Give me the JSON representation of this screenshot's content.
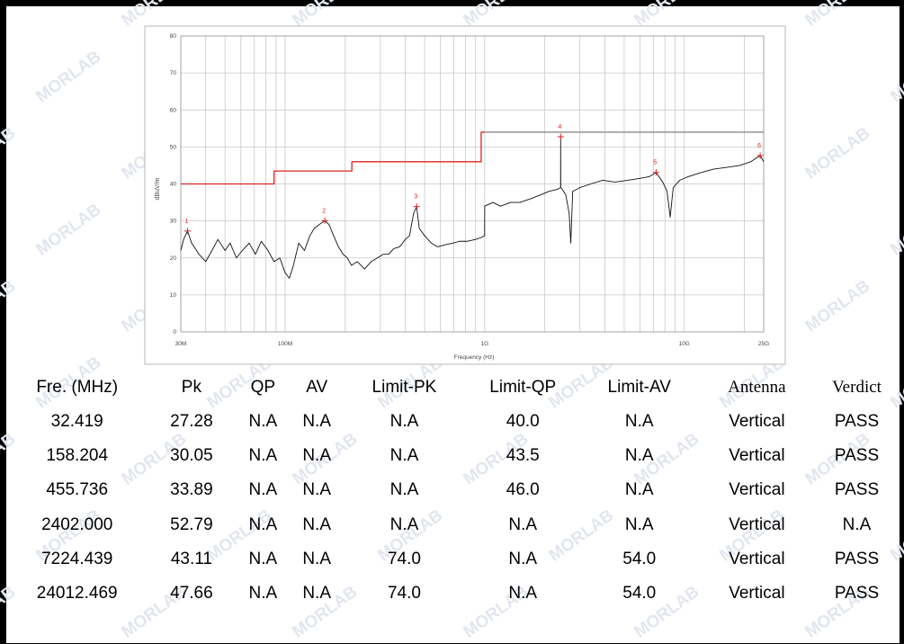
{
  "watermark_text": "MORLAB",
  "chart_data": {
    "type": "line",
    "xlabel": "Frequency (Hz)",
    "ylabel": "dBuV/m",
    "x_scale": "log",
    "xlim_mhz": [
      30,
      25000
    ],
    "ylim": [
      0,
      80
    ],
    "y_ticks": [
      "0",
      "10",
      "20",
      "30",
      "40",
      "50",
      "60",
      "70",
      "80"
    ],
    "x_ticks": [
      {
        "mhz": 30,
        "label": "30M"
      },
      {
        "mhz": 100,
        "label": "100M"
      },
      {
        "mhz": 1000,
        "label": "1G"
      },
      {
        "mhz": 10000,
        "label": "10G"
      },
      {
        "mhz": 25000,
        "label": "25G"
      }
    ],
    "grid": true,
    "colors": {
      "limit_qp": "#dd2222",
      "limit_pk": "#8a8a8a",
      "trace": "#111111",
      "marker": "#dd2222",
      "grid": "#c8c8c8"
    },
    "series": [
      {
        "kind": "trace",
        "points": [
          [
            30,
            22
          ],
          [
            31,
            25
          ],
          [
            32.4,
            27.3
          ],
          [
            34,
            24
          ],
          [
            37,
            21
          ],
          [
            40,
            19
          ],
          [
            43,
            22
          ],
          [
            46,
            25
          ],
          [
            50,
            22
          ],
          [
            53,
            24
          ],
          [
            57,
            20
          ],
          [
            61,
            22
          ],
          [
            66,
            24
          ],
          [
            71,
            21
          ],
          [
            76,
            24.5
          ],
          [
            82,
            22
          ],
          [
            88,
            19
          ],
          [
            94,
            20
          ],
          [
            100,
            16
          ],
          [
            105,
            14.5
          ],
          [
            110,
            18
          ],
          [
            117,
            24
          ],
          [
            125,
            22
          ],
          [
            133,
            26
          ],
          [
            140,
            28
          ],
          [
            148,
            29
          ],
          [
            158.2,
            30.05
          ],
          [
            166,
            29
          ],
          [
            175,
            26
          ],
          [
            185,
            23
          ],
          [
            195,
            21
          ],
          [
            205,
            20
          ],
          [
            215,
            18
          ],
          [
            230,
            19
          ],
          [
            250,
            17
          ],
          [
            270,
            19
          ],
          [
            290,
            20
          ],
          [
            310,
            21
          ],
          [
            330,
            21
          ],
          [
            350,
            22.5
          ],
          [
            375,
            23
          ],
          [
            400,
            25
          ],
          [
            420,
            26
          ],
          [
            440,
            32
          ],
          [
            455.7,
            33.89
          ],
          [
            470,
            28
          ],
          [
            500,
            26
          ],
          [
            540,
            24
          ],
          [
            580,
            23
          ],
          [
            630,
            23.5
          ],
          [
            690,
            24
          ],
          [
            750,
            24.5
          ],
          [
            820,
            24.5
          ],
          [
            900,
            25
          ],
          [
            960,
            25.5
          ],
          [
            999,
            26
          ],
          [
            1000,
            34
          ],
          [
            1100,
            35
          ],
          [
            1200,
            34
          ],
          [
            1350,
            35
          ],
          [
            1500,
            35
          ],
          [
            1700,
            36
          ],
          [
            1900,
            37
          ],
          [
            2100,
            38
          ],
          [
            2300,
            38.5
          ],
          [
            2400,
            39
          ],
          [
            2402,
            52.79
          ],
          [
            2405,
            39
          ],
          [
            2450,
            38.5
          ],
          [
            2550,
            37
          ],
          [
            2650,
            32
          ],
          [
            2700,
            24
          ],
          [
            2760,
            38
          ],
          [
            3000,
            39
          ],
          [
            3400,
            40
          ],
          [
            3900,
            41
          ],
          [
            4500,
            40.5
          ],
          [
            5200,
            41
          ],
          [
            6000,
            41.5
          ],
          [
            6700,
            42
          ],
          [
            7224.4,
            43.11
          ],
          [
            7800,
            40.5
          ],
          [
            8200,
            38
          ],
          [
            8500,
            31
          ],
          [
            8800,
            39
          ],
          [
            9500,
            41
          ],
          [
            10500,
            42
          ],
          [
            12000,
            43
          ],
          [
            14000,
            44
          ],
          [
            16500,
            44.5
          ],
          [
            19000,
            45
          ],
          [
            21500,
            46
          ],
          [
            24012.5,
            47.66
          ],
          [
            25000,
            46
          ]
        ]
      },
      {
        "kind": "limit-qp",
        "points": [
          [
            30,
            40
          ],
          [
            88,
            40
          ],
          [
            88,
            43.5
          ],
          [
            216,
            43.5
          ],
          [
            216,
            46
          ],
          [
            960,
            46
          ],
          [
            960,
            54
          ],
          [
            1000,
            54
          ]
        ]
      },
      {
        "kind": "limit-pk",
        "points": [
          [
            1000,
            54
          ],
          [
            25000,
            54
          ]
        ]
      }
    ],
    "markers": [
      {
        "label": "1",
        "mhz": 32.419,
        "value": 27.28
      },
      {
        "label": "2",
        "mhz": 158.204,
        "value": 30.05
      },
      {
        "label": "3",
        "mhz": 455.736,
        "value": 33.89
      },
      {
        "label": "4",
        "mhz": 2402.0,
        "value": 52.79
      },
      {
        "label": "5",
        "mhz": 7224.439,
        "value": 43.11
      },
      {
        "label": "6",
        "mhz": 24012.469,
        "value": 47.66
      }
    ]
  },
  "table": {
    "headers": [
      "Fre. (MHz)",
      "Pk",
      "QP",
      "AV",
      "Limit-PK",
      "Limit-QP",
      "Limit-AV",
      "Antenna",
      "Verdict"
    ],
    "rows": [
      [
        "32.419",
        "27.28",
        "N.A",
        "N.A",
        "N.A",
        "40.0",
        "N.A",
        "Vertical",
        "PASS"
      ],
      [
        "158.204",
        "30.05",
        "N.A",
        "N.A",
        "N.A",
        "43.5",
        "N.A",
        "Vertical",
        "PASS"
      ],
      [
        "455.736",
        "33.89",
        "N.A",
        "N.A",
        "N.A",
        "46.0",
        "N.A",
        "Vertical",
        "PASS"
      ],
      [
        "2402.000",
        "52.79",
        "N.A",
        "N.A",
        "N.A",
        "N.A",
        "N.A",
        "Vertical",
        "N.A"
      ],
      [
        "7224.439",
        "43.11",
        "N.A",
        "N.A",
        "74.0",
        "N.A",
        "54.0",
        "Vertical",
        "PASS"
      ],
      [
        "24012.469",
        "47.66",
        "N.A",
        "N.A",
        "74.0",
        "N.A",
        "54.0",
        "Vertical",
        "PASS"
      ]
    ]
  }
}
